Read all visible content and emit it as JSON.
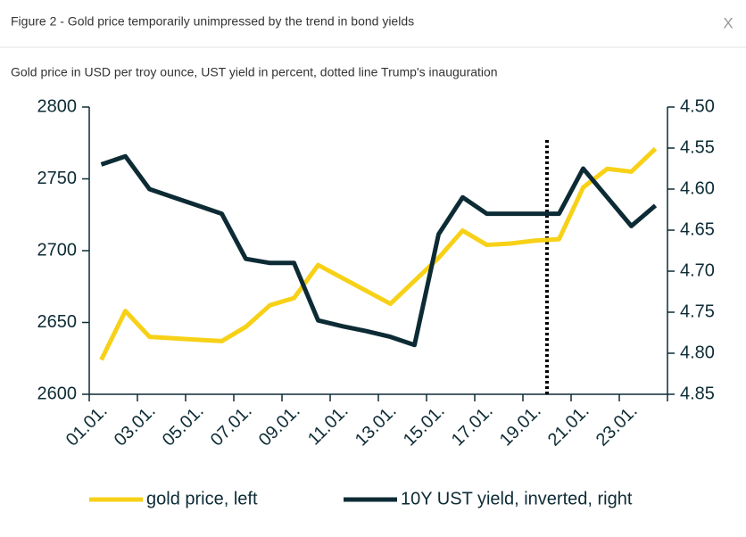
{
  "header": {
    "title": "Figure 2 - Gold price temporarily unimpressed by the trend in bond yields",
    "close": "X"
  },
  "chart_data": {
    "type": "line",
    "subtitle": "Gold price in USD per troy ounce, UST yield in percent, dotted line Trump's inauguration",
    "categories": [
      "01.01.",
      null,
      "03.01.",
      null,
      "05.01.",
      null,
      "07.01.",
      null,
      "09.01.",
      null,
      "11.01.",
      null,
      "13.01.",
      null,
      "15.01.",
      null,
      "17.01.",
      null,
      "19.01.",
      null,
      "21.01.",
      null,
      "23.01.",
      null
    ],
    "ylim": [
      2600,
      2800
    ],
    "yticks": [
      2600,
      2650,
      2700,
      2750,
      2800
    ],
    "y2lim": [
      4.85,
      4.5
    ],
    "y2ticks": [
      {
        "value": 4.85,
        "label": "4.85"
      },
      {
        "value": 4.8,
        "label": "4.80"
      },
      {
        "value": 4.75,
        "label": "4.75"
      },
      {
        "value": 4.7,
        "label": "4.70"
      },
      {
        "value": 4.65,
        "label": "4.65"
      },
      {
        "value": 4.6,
        "label": "4.60"
      },
      {
        "value": 4.55,
        "label": "4.55"
      },
      {
        "value": 4.5,
        "label": "4.50"
      }
    ],
    "series": [
      {
        "name": "gold price, left",
        "color": "#f7d117",
        "values": [
          2624,
          2658,
          2640,
          2639,
          2638,
          2637,
          2647,
          2662,
          2667,
          2690,
          2681,
          2672,
          2663,
          2679,
          2695,
          2714,
          2704,
          2705,
          2707,
          2708,
          2744,
          2757,
          2755,
          2771
        ]
      },
      {
        "name": "10Y UST yield, inverted, right",
        "color": "#0d2b35",
        "axis": "y2",
        "values": [
          4.57,
          4.56,
          4.6,
          4.61,
          4.62,
          4.63,
          4.685,
          4.69,
          4.69,
          4.76,
          4.767,
          4.773,
          4.78,
          4.79,
          4.655,
          4.61,
          4.63,
          4.63,
          4.63,
          4.63,
          4.575,
          4.61,
          4.645,
          4.62
        ]
      }
    ],
    "vline": {
      "x": 19,
      "y": [
        2600,
        2778
      ]
    }
  }
}
